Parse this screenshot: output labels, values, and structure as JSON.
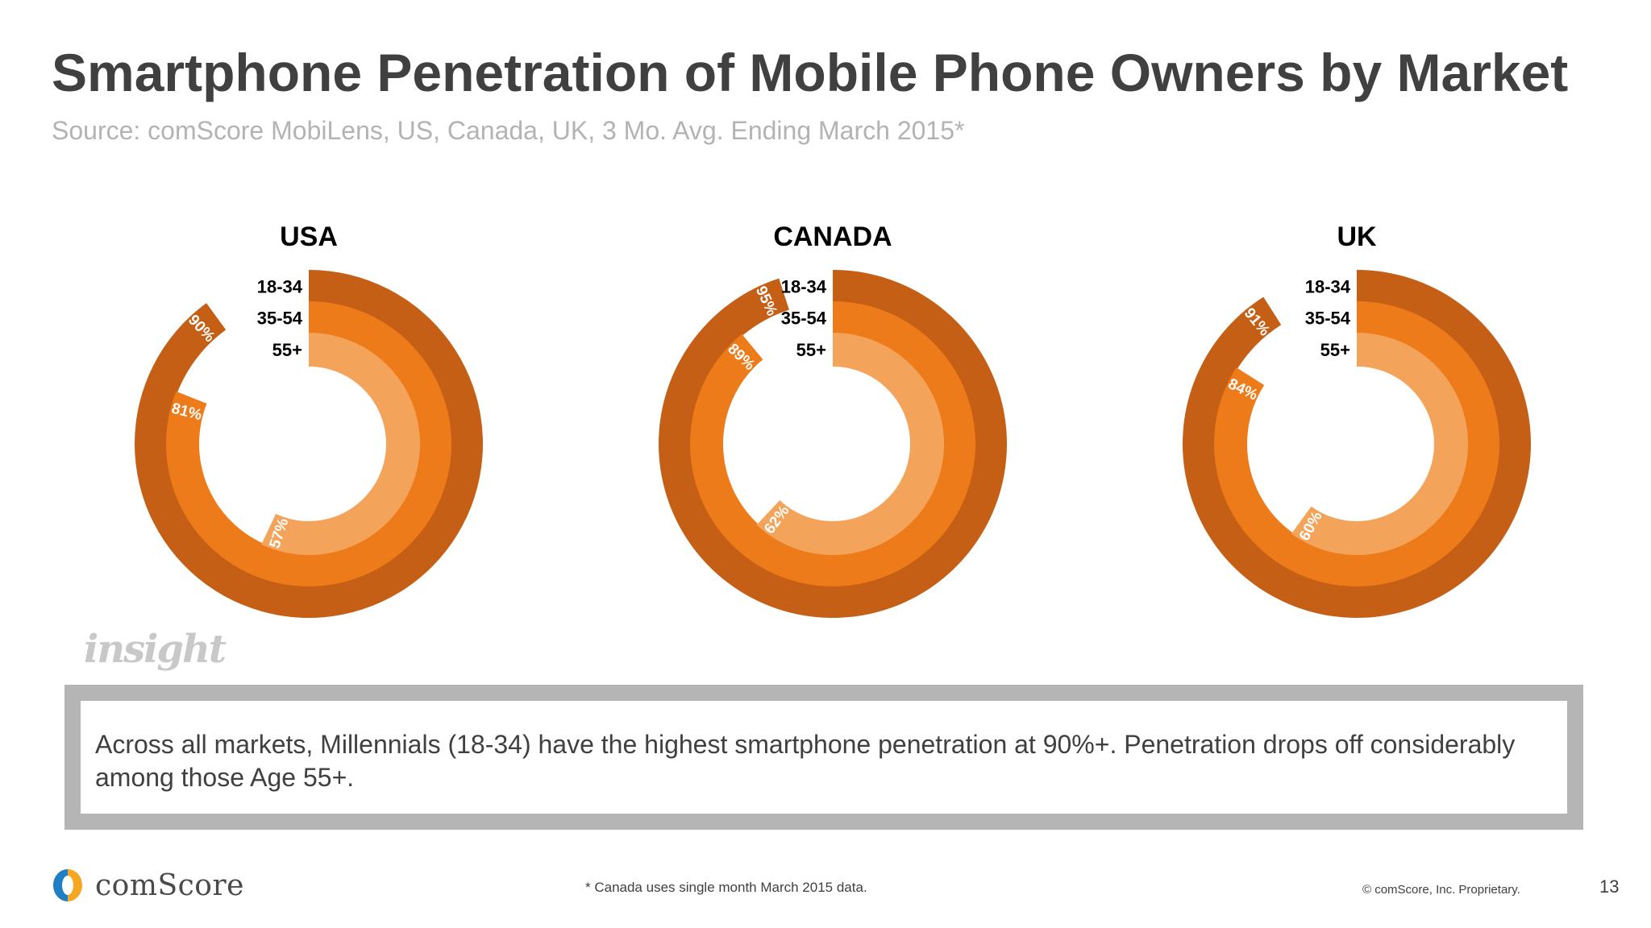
{
  "slide": {
    "title": "Smartphone Penetration of Mobile Phone Owners by Market",
    "subtitle": "Source: comScore MobiLens, US, Canada, UK, 3 Mo. Avg. Ending March 2015*",
    "insight_label": "insight",
    "insight_text": "Across all markets, Millennials (18-34) have the highest smartphone penetration at 90%+. Penetration drops off considerably among those Age 55+.",
    "brand": "comScore",
    "footnote": "* Canada uses single month March 2015 data.",
    "copyright": "© comScore, Inc. Proprietary.",
    "page_number": "13"
  },
  "colors": {
    "ring_18_34": "#c55f16",
    "ring_35_54": "#ee7b19",
    "ring_55_plus": "#f4a35a",
    "title": "#404040",
    "subtitle": "#b3b3b3",
    "insight_border": "#b5b5b5"
  },
  "chart_data": [
    {
      "type": "radial-bar",
      "title": "USA",
      "series": [
        {
          "name": "18-34",
          "value": 90,
          "label": "90%"
        },
        {
          "name": "35-54",
          "value": 81,
          "label": "81%"
        },
        {
          "name": "55+",
          "value": 57,
          "label": "57%"
        }
      ],
      "max": 100
    },
    {
      "type": "radial-bar",
      "title": "CANADA",
      "series": [
        {
          "name": "18-34",
          "value": 95,
          "label": "95%"
        },
        {
          "name": "35-54",
          "value": 89,
          "label": "89%"
        },
        {
          "name": "55+",
          "value": 62,
          "label": "62%"
        }
      ],
      "max": 100
    },
    {
      "type": "radial-bar",
      "title": "UK",
      "series": [
        {
          "name": "18-34",
          "value": 91,
          "label": "91%"
        },
        {
          "name": "35-54",
          "value": 84,
          "label": "84%"
        },
        {
          "name": "55+",
          "value": 60,
          "label": "60%"
        }
      ],
      "max": 100
    }
  ]
}
